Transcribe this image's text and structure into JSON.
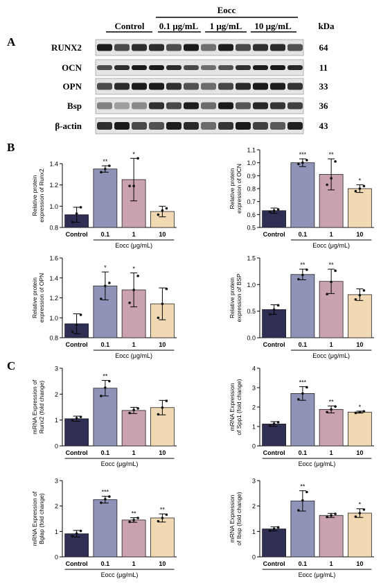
{
  "panel_letters": {
    "a": "A",
    "b": "B",
    "c": "C"
  },
  "western_blot": {
    "treatment_label": "Eocc",
    "group_labels": [
      "Control",
      "0.1 μg/mL",
      "1 μg/mL",
      "10 μg/mL"
    ],
    "kda_header": "kDa",
    "rows": [
      {
        "protein": "RUNX2",
        "kda": "64"
      },
      {
        "protein": "OCN",
        "kda": "11"
      },
      {
        "protein": "OPN",
        "kda": "33"
      },
      {
        "protein": "Bsp",
        "kda": "36"
      },
      {
        "protein": "β-actin",
        "kda": "43"
      }
    ]
  },
  "colors": {
    "Control": "#2f2e54",
    "0.1": "#8f93b8",
    "1": "#c9a1b0",
    "10": "#f0d9b3"
  },
  "chart_data": [
    {
      "type": "bar",
      "categories": [
        "Control",
        "0.1",
        "1",
        "10"
      ],
      "values": [
        0.92,
        1.35,
        1.25,
        0.95
      ],
      "errors": [
        0.07,
        0.03,
        0.2,
        0.05
      ],
      "points": [
        [
          0.85,
          0.93,
          0.99
        ],
        [
          1.32,
          1.35,
          1.38
        ],
        [
          1.19,
          1.19,
          1.45
        ],
        [
          0.92,
          0.96,
          0.98
        ]
      ],
      "significance": [
        "",
        "**",
        "*",
        ""
      ],
      "ylim": [
        0.8,
        1.4
      ],
      "yticks": [
        "0.8",
        "1.0",
        "1.2",
        "1.4"
      ],
      "ylabel": [
        "Relative protein",
        "expression of Runx2"
      ],
      "xlabel": "Eocc (μg/mL)",
      "bracket_start": 1
    },
    {
      "type": "bar",
      "categories": [
        "Control",
        "0.1",
        "1",
        "10"
      ],
      "values": [
        0.63,
        1.0,
        0.91,
        0.8
      ],
      "errors": [
        0.02,
        0.03,
        0.12,
        0.03
      ],
      "points": [
        [
          0.62,
          0.63,
          0.64
        ],
        [
          0.99,
          1.0,
          1.02
        ],
        [
          0.83,
          0.88,
          1.01
        ],
        [
          0.78,
          0.8,
          0.82
        ]
      ],
      "significance": [
        "",
        "***",
        "**",
        "*"
      ],
      "ylim": [
        0.5,
        1.1
      ],
      "yticks": [
        "0.5",
        "0.6",
        "0.7",
        "0.8",
        "0.9",
        "1.0",
        "1.1"
      ],
      "ylabel": [
        "Relative protein",
        "expression of OCN"
      ],
      "xlabel": "Eocc (μg/mL)",
      "bracket_start": 1
    },
    {
      "type": "bar",
      "categories": [
        "Control",
        "0.1",
        "1",
        "10"
      ],
      "values": [
        0.94,
        1.32,
        1.28,
        1.14
      ],
      "errors": [
        0.1,
        0.14,
        0.17,
        0.16
      ],
      "points": [
        [
          0.86,
          0.93,
          1.03
        ],
        [
          1.19,
          1.32,
          1.35
        ],
        [
          1.15,
          1.28,
          1.42
        ],
        [
          1.0,
          1.14,
          1.29
        ]
      ],
      "significance": [
        "",
        "*",
        "*",
        ""
      ],
      "ylim": [
        0.8,
        1.6
      ],
      "yticks": [
        "0.8",
        "1.0",
        "1.2",
        "1.4",
        "1.6"
      ],
      "ylabel": [
        "Relative protein",
        "expression of OPN"
      ],
      "xlabel": "Eocc (μg/mL)",
      "bracket_start": 1
    },
    {
      "type": "bar",
      "categories": [
        "Control",
        "0.1",
        "1",
        "10"
      ],
      "values": [
        0.53,
        1.19,
        1.06,
        0.81
      ],
      "errors": [
        0.09,
        0.1,
        0.23,
        0.11
      ],
      "points": [
        [
          0.44,
          0.53,
          0.61
        ],
        [
          1.1,
          1.18,
          1.28
        ],
        [
          0.82,
          1.05,
          1.26
        ],
        [
          0.72,
          0.8,
          0.89
        ]
      ],
      "significance": [
        "",
        "**",
        "**",
        ""
      ],
      "ylim": [
        0,
        1.5
      ],
      "yticks": [
        "0.0",
        "0.5",
        "1.0",
        "1.5"
      ],
      "ylabel": [
        "Relative protein",
        "expression of BSP"
      ],
      "xlabel": "Eocc (μg/mL)",
      "bracket_start": 1
    },
    {
      "type": "bar",
      "categories": [
        "Control",
        "0.1",
        "1",
        "10"
      ],
      "values": [
        1.05,
        2.23,
        1.37,
        1.48
      ],
      "errors": [
        0.1,
        0.3,
        0.12,
        0.28
      ],
      "points": [
        [
          0.98,
          1.07,
          1.12
        ],
        [
          1.93,
          2.25,
          2.5
        ],
        [
          1.27,
          1.39,
          1.45
        ],
        [
          1.22,
          1.48,
          1.74
        ]
      ],
      "significance": [
        "",
        "**",
        "",
        ""
      ],
      "ylim": [
        0,
        3
      ],
      "yticks": [
        "0",
        "1",
        "2",
        "3"
      ],
      "ylabel": [
        "mRNA Expression of",
        "Runx2 (fold change)"
      ],
      "xlabel": "Eocc (μg/mL)",
      "bracket_start": 0
    },
    {
      "type": "bar",
      "categories": [
        "Control",
        "0.1",
        "1",
        "10"
      ],
      "values": [
        1.13,
        2.7,
        1.88,
        1.74
      ],
      "errors": [
        0.12,
        0.35,
        0.18,
        0.05
      ],
      "points": [
        [
          1.04,
          1.14,
          1.22
        ],
        [
          2.4,
          2.7,
          3.02
        ],
        [
          1.74,
          1.88,
          2.03
        ],
        [
          1.7,
          1.74,
          1.78
        ]
      ],
      "significance": [
        "",
        "***",
        "**",
        "*"
      ],
      "ylim": [
        0,
        4
      ],
      "yticks": [
        "0",
        "1",
        "2",
        "3",
        "4"
      ],
      "ylabel": [
        "mRNA Expression",
        "of Spp1 (fold change)"
      ],
      "xlabel": "Eocc (μg/mL)",
      "bracket_start": 0
    },
    {
      "type": "bar",
      "categories": [
        "Control",
        "0.1",
        "1",
        "10"
      ],
      "values": [
        0.91,
        2.25,
        1.45,
        1.53
      ],
      "errors": [
        0.13,
        0.13,
        0.09,
        0.16
      ],
      "points": [
        [
          0.81,
          0.92,
          1.02
        ],
        [
          2.13,
          2.27,
          2.37
        ],
        [
          1.38,
          1.45,
          1.53
        ],
        [
          1.4,
          1.53,
          1.66
        ]
      ],
      "significance": [
        "",
        "***",
        "**",
        "**"
      ],
      "ylim": [
        0,
        3
      ],
      "yticks": [
        "0",
        "1",
        "2",
        "3"
      ],
      "ylabel": [
        "mRNA Expression of",
        "Bglap (fold change)"
      ],
      "xlabel": "Eocc (μg/mL)",
      "bracket_start": 0
    },
    {
      "type": "bar",
      "categories": [
        "Control",
        "0.1",
        "1",
        "10"
      ],
      "values": [
        1.1,
        2.2,
        1.63,
        1.72
      ],
      "errors": [
        0.08,
        0.4,
        0.08,
        0.17
      ],
      "points": [
        [
          1.03,
          1.1,
          1.16
        ],
        [
          1.83,
          2.22,
          2.55
        ],
        [
          1.57,
          1.63,
          1.69
        ],
        [
          1.58,
          1.72,
          1.86
        ]
      ],
      "significance": [
        "",
        "**",
        "",
        "*"
      ],
      "ylim": [
        0,
        3
      ],
      "yticks": [
        "0",
        "1",
        "2",
        "3"
      ],
      "ylabel": [
        "mRNA Expression",
        "of Ibsp (fold change)"
      ],
      "xlabel": "Eocc (μg/mL)",
      "bracket_start": 0
    }
  ]
}
